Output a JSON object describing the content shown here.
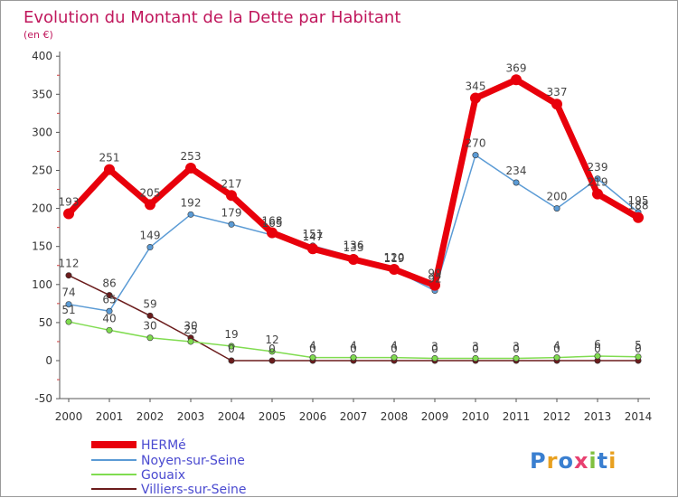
{
  "chart_data": {
    "type": "line",
    "title": "Evolution du Montant de la Dette par Habitant",
    "subtitle": "(en €)",
    "x": [
      "2000",
      "2001",
      "2002",
      "2003",
      "2004",
      "2005",
      "2006",
      "2007",
      "2008",
      "2009",
      "2010",
      "2011",
      "2012",
      "2013",
      "2014"
    ],
    "ylim": [
      -50,
      400
    ],
    "yticks": [
      "-50",
      "0",
      "50",
      "100",
      "150",
      "200",
      "250",
      "300",
      "350",
      "400"
    ],
    "ytick_values": [
      -50,
      0,
      50,
      100,
      150,
      200,
      250,
      300,
      350,
      400
    ],
    "grid": false,
    "legend_placement": "bottom-left",
    "series": [
      {
        "name": "HERMé",
        "color": "#e8000b",
        "values": [
          193,
          251,
          205,
          253,
          217,
          168,
          147,
          133,
          120,
          99,
          345,
          369,
          337,
          219,
          188
        ]
      },
      {
        "name": "Noyen-sur-Seine",
        "color": "#5b9bd5",
        "values": [
          74,
          65,
          149,
          192,
          179,
          165,
          151,
          136,
          119,
          92,
          270,
          234,
          200,
          239,
          195
        ]
      },
      {
        "name": "Gouaix",
        "color": "#80dc50",
        "values": [
          51,
          40,
          30,
          25,
          19,
          12,
          4,
          4,
          4,
          3,
          3,
          3,
          4,
          6,
          5
        ]
      },
      {
        "name": "Villiers-sur-Seine",
        "color": "#6b1c1c",
        "values": [
          112,
          86,
          59,
          30,
          0,
          0,
          0,
          0,
          0,
          0,
          0,
          0,
          0,
          0,
          0
        ]
      }
    ]
  },
  "labels": [
    {
      "text": "193",
      "x": 0,
      "y": 193
    },
    {
      "text": "251",
      "x": 1,
      "y": 251
    },
    {
      "text": "205",
      "x": 2,
      "y": 205
    },
    {
      "text": "253",
      "x": 3,
      "y": 253
    },
    {
      "text": "217",
      "x": 4,
      "y": 217
    },
    {
      "text": "168",
      "x": 5,
      "y": 168
    },
    {
      "text": "147",
      "x": 6,
      "y": 147
    },
    {
      "text": "133",
      "x": 7,
      "y": 133
    },
    {
      "text": "120",
      "x": 8,
      "y": 120
    },
    {
      "text": "99",
      "x": 9,
      "y": 99
    },
    {
      "text": "345",
      "x": 10,
      "y": 345
    },
    {
      "text": "369",
      "x": 11,
      "y": 369
    },
    {
      "text": "337",
      "x": 12,
      "y": 337
    },
    {
      "text": "219",
      "x": 13,
      "y": 219
    },
    {
      "text": "188",
      "x": 14,
      "y": 188
    },
    {
      "text": "74",
      "x": 0,
      "y": 74
    },
    {
      "text": "65",
      "x": 1,
      "y": 65
    },
    {
      "text": "149",
      "x": 2,
      "y": 149
    },
    {
      "text": "192",
      "x": 3,
      "y": 192
    },
    {
      "text": "179",
      "x": 4,
      "y": 179
    },
    {
      "text": "165",
      "x": 5,
      "y": 165
    },
    {
      "text": "151",
      "x": 6,
      "y": 151
    },
    {
      "text": "136",
      "x": 7,
      "y": 136
    },
    {
      "text": "119",
      "x": 8,
      "y": 119
    },
    {
      "text": "92",
      "x": 9,
      "y": 92
    },
    {
      "text": "270",
      "x": 10,
      "y": 270
    },
    {
      "text": "234",
      "x": 11,
      "y": 234
    },
    {
      "text": "200",
      "x": 12,
      "y": 200
    },
    {
      "text": "239",
      "x": 13,
      "y": 239
    },
    {
      "text": "195",
      "x": 14,
      "y": 195
    },
    {
      "text": "51",
      "x": 0,
      "y": 51
    },
    {
      "text": "40",
      "x": 1,
      "y": 40
    },
    {
      "text": "30",
      "x": 2,
      "y": 30
    },
    {
      "text": "25",
      "x": 3,
      "y": 25
    },
    {
      "text": "19",
      "x": 4,
      "y": 19
    },
    {
      "text": "12",
      "x": 5,
      "y": 12
    },
    {
      "text": "4",
      "x": 6,
      "y": 4
    },
    {
      "text": "4",
      "x": 7,
      "y": 4
    },
    {
      "text": "4",
      "x": 8,
      "y": 4
    },
    {
      "text": "3",
      "x": 9,
      "y": 3
    },
    {
      "text": "3",
      "x": 10,
      "y": 3
    },
    {
      "text": "3",
      "x": 11,
      "y": 3
    },
    {
      "text": "4",
      "x": 12,
      "y": 4
    },
    {
      "text": "6",
      "x": 13,
      "y": 6
    },
    {
      "text": "5",
      "x": 14,
      "y": 5
    },
    {
      "text": "112",
      "x": 0,
      "y": 112
    },
    {
      "text": "86",
      "x": 1,
      "y": 86
    },
    {
      "text": "59",
      "x": 2,
      "y": 59
    },
    {
      "text": "30",
      "x": 3,
      "y": 30
    },
    {
      "text": "0",
      "x": 4,
      "y": 0
    },
    {
      "text": "0",
      "x": 5,
      "y": 0
    },
    {
      "text": "0",
      "x": 6,
      "y": 0
    },
    {
      "text": "0",
      "x": 7,
      "y": 0
    },
    {
      "text": "0",
      "x": 8,
      "y": 0
    },
    {
      "text": "0",
      "x": 9,
      "y": 0
    },
    {
      "text": "0",
      "x": 10,
      "y": 0
    },
    {
      "text": "0",
      "x": 11,
      "y": 0
    },
    {
      "text": "0",
      "x": 12,
      "y": 0
    },
    {
      "text": "0",
      "x": 13,
      "y": 0
    },
    {
      "text": "0",
      "x": 14,
      "y": 0
    }
  ],
  "logo": {
    "text": "Proxiti"
  },
  "colors": {
    "title": "#c0175c",
    "axis": "#555555",
    "ticks": "#333333",
    "legend_text": "#4a4ad0"
  }
}
